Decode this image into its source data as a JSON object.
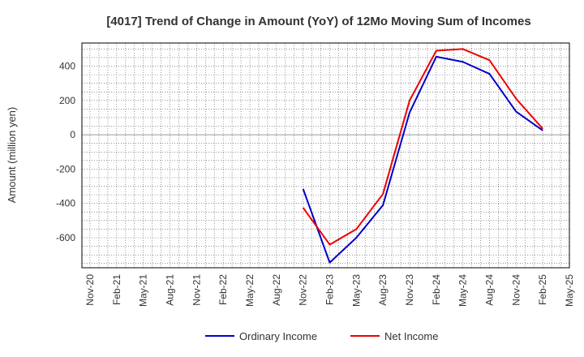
{
  "chart_data": {
    "type": "line",
    "title": "[4017]  Trend of Change in Amount (YoY) of 12Mo Moving Sum of Incomes",
    "ylabel": "Amount (million yen)",
    "xlabel": "",
    "x_ticks": [
      "Nov-20",
      "Feb-21",
      "May-21",
      "Aug-21",
      "Nov-21",
      "Feb-22",
      "May-22",
      "Aug-22",
      "Nov-22",
      "Feb-23",
      "May-23",
      "Aug-23",
      "Nov-23",
      "Feb-24",
      "May-24",
      "Aug-24",
      "Nov-24",
      "Feb-25",
      "May-25"
    ],
    "y_ticks": [
      -600,
      -400,
      -200,
      0,
      200,
      400
    ],
    "ylim": [
      -775,
      535
    ],
    "grid": true,
    "legend_position": "bottom",
    "series": [
      {
        "name": "Ordinary Income",
        "color": "#0000cc",
        "x": [
          "Nov-22",
          "Feb-23",
          "May-23",
          "Aug-23",
          "Nov-23",
          "Feb-24",
          "May-24",
          "Aug-24",
          "Nov-24",
          "Feb-25"
        ],
        "values": [
          -315,
          -745,
          -600,
          -410,
          130,
          455,
          425,
          355,
          135,
          25
        ]
      },
      {
        "name": "Net Income",
        "color": "#ee0000",
        "x": [
          "Nov-22",
          "Feb-23",
          "May-23",
          "Aug-23",
          "Nov-23",
          "Feb-24",
          "May-24",
          "Aug-24",
          "Nov-24",
          "Feb-25"
        ],
        "values": [
          -425,
          -640,
          -550,
          -345,
          200,
          490,
          500,
          435,
          210,
          35
        ]
      }
    ]
  }
}
